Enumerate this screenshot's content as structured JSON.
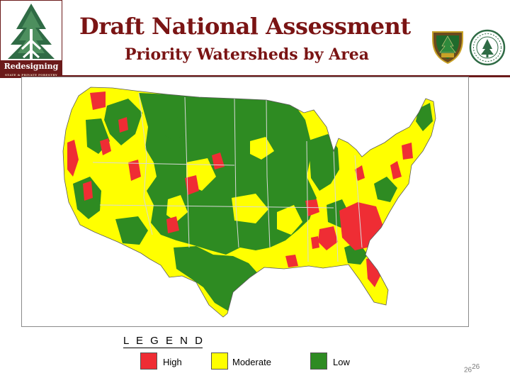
{
  "header": {
    "title": "Draft National Assessment",
    "subtitle": "Priority Watersheds by Area"
  },
  "logo_left": {
    "text": "Redesigning",
    "tagline": "STATE & PRIVATE FORESTRY"
  },
  "logo_badges": {
    "shield_icon": "us-forest-service-shield-icon",
    "seal_icon": "state-foresters-seal-icon"
  },
  "map": {
    "type": "choropleth",
    "region": "conterminous United States",
    "categories": [
      {
        "key": "high",
        "label": "High",
        "color": "#ef2d34"
      },
      {
        "key": "moderate",
        "label": "Moderate",
        "color": "#ffff00"
      },
      {
        "key": "low",
        "label": "Low",
        "color": "#2e8b22"
      }
    ],
    "border_color": "#d8d8d8"
  },
  "legend": {
    "title": "L E G E N D",
    "items": [
      {
        "label": "High",
        "color": "#ef2d34"
      },
      {
        "label": "Moderate",
        "color": "#ffff00"
      },
      {
        "label": "Low",
        "color": "#2e8b22"
      }
    ]
  },
  "slide_number": {
    "main": "26",
    "sup": "26"
  }
}
